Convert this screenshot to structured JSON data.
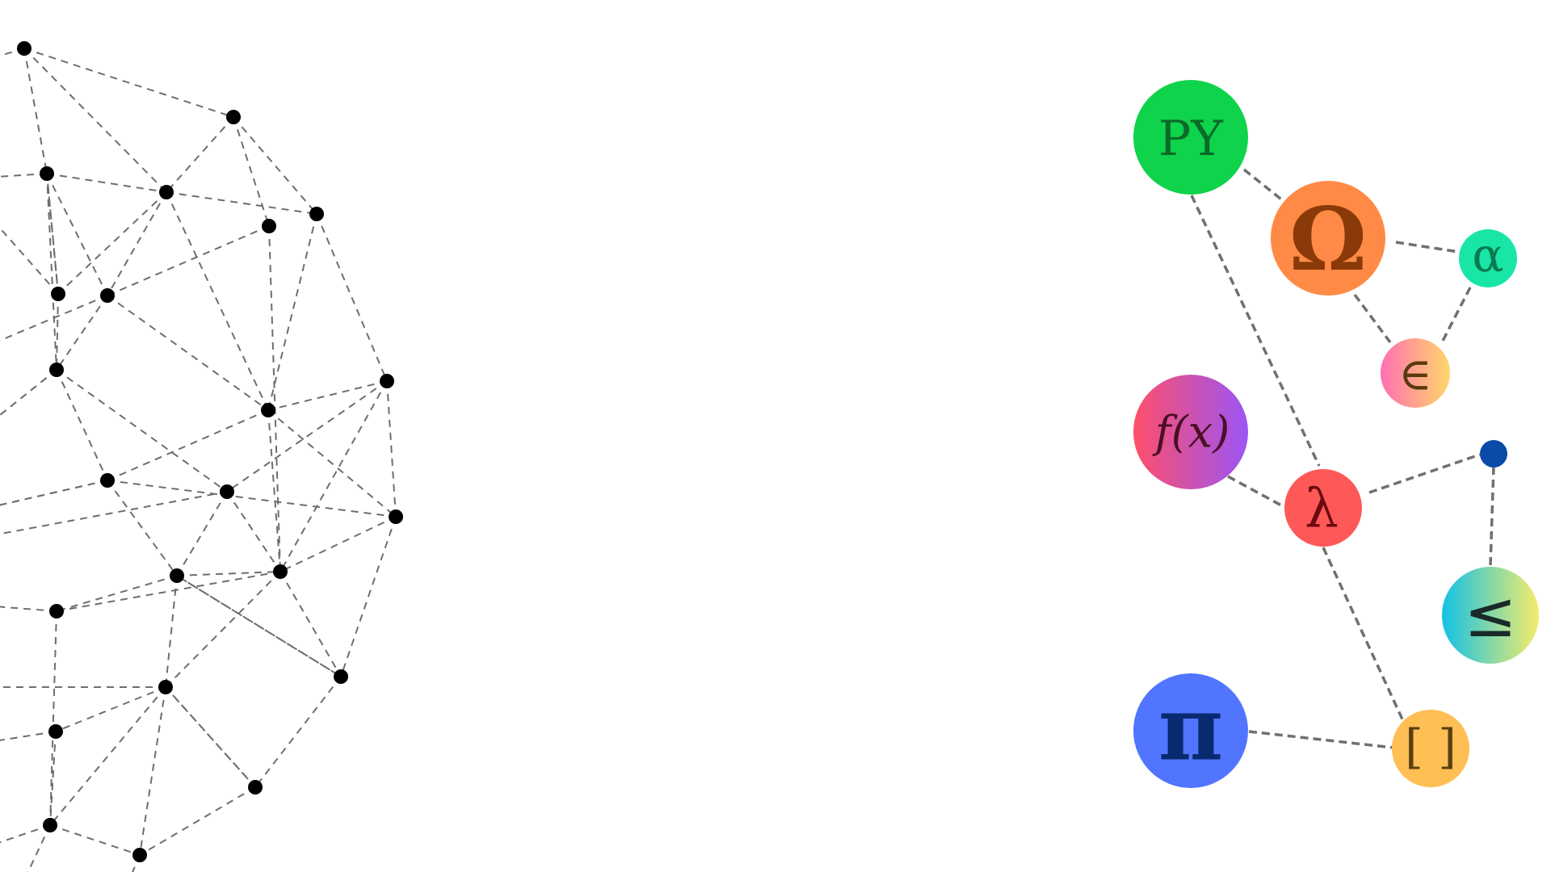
{
  "diagram": {
    "symbols": {
      "py": "PY",
      "omega": "Ω",
      "alpha": "α",
      "element_of": "∈",
      "function": "f(x)",
      "lambda": "λ",
      "less_equal": "≤",
      "pi": "π",
      "brackets": "[ ]"
    },
    "colors": {
      "py_fill": "#0fd34a",
      "py_text": "#0a6a2a",
      "omega_fill": "#ff8a45",
      "omega_text": "#8a3a08",
      "alpha_fill": "#19e6a6",
      "alpha_text": "#0a7a50",
      "element_grad_start": "#ff6fb0",
      "element_grad_end": "#ffd76a",
      "element_text": "#5a3a10",
      "function_grad_start": "#ff4f6a",
      "function_grad_end": "#9b55f5",
      "function_text": "#4a1025",
      "lambda_fill": "#ff5858",
      "lambda_text": "#6a0a10",
      "small_dot": "#0a4aa8",
      "le_grad_start": "#12c2e6",
      "le_grad_end": "#f6ec6a",
      "le_text": "#1a2a2a",
      "pi_fill": "#5275ff",
      "pi_text": "#0a2a70",
      "brackets_fill": "#ffbf55",
      "brackets_text": "#5a4010"
    }
  }
}
